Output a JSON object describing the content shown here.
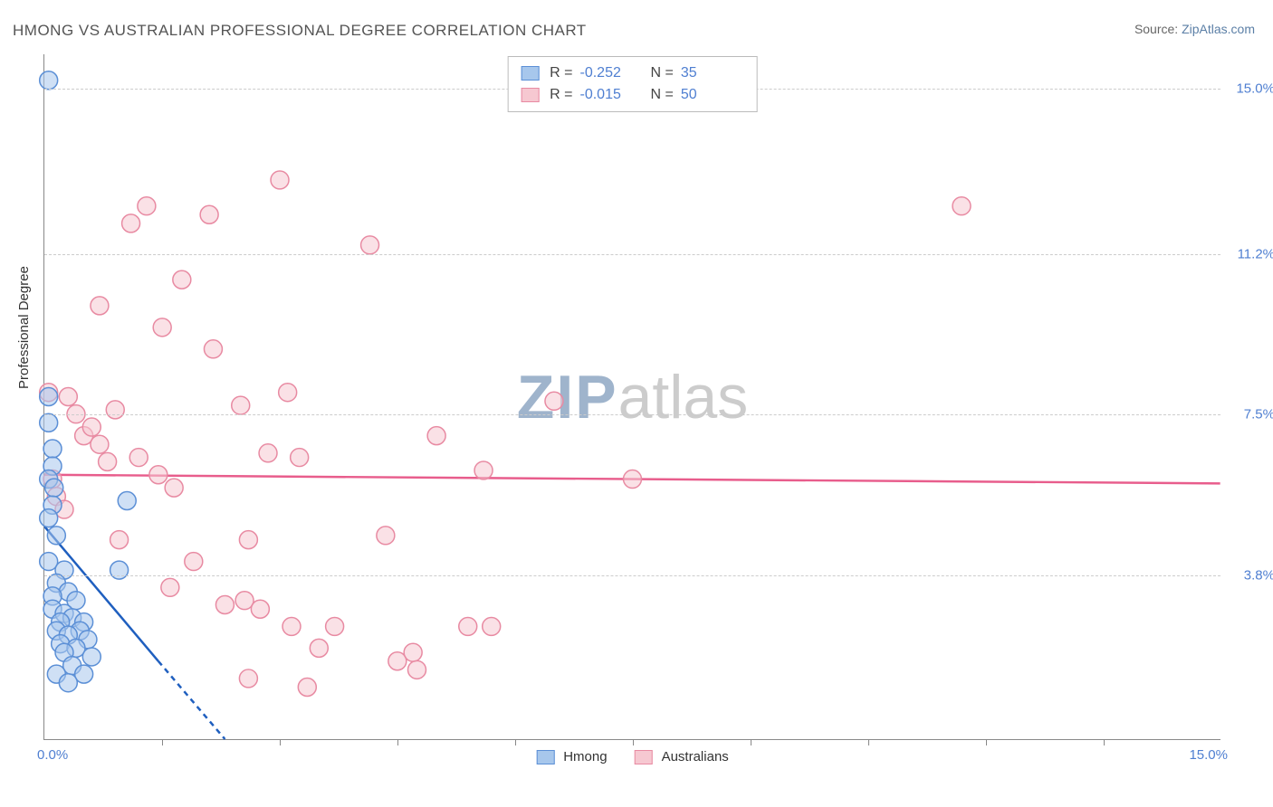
{
  "title": "HMONG VS AUSTRALIAN PROFESSIONAL DEGREE CORRELATION CHART",
  "source_prefix": "Source: ",
  "source_name": "ZipAtlas.com",
  "y_axis_label": "Professional Degree",
  "watermark": {
    "bold": "ZIP",
    "light": "atlas"
  },
  "colors": {
    "hmong_fill": "#a7c7ec",
    "hmong_stroke": "#5b8fd6",
    "hmong_line": "#1f5fbf",
    "aus_fill": "#f6c8d1",
    "aus_stroke": "#e88aa2",
    "aus_line": "#e85d8c",
    "axis_tick_label": "#4f7fd1",
    "grid": "#cccccc",
    "title": "#555555"
  },
  "chart": {
    "type": "scatter",
    "xlim": [
      0,
      15
    ],
    "ylim": [
      0,
      15.8
    ],
    "y_ticks": [
      3.8,
      7.5,
      11.2,
      15.0
    ],
    "y_tick_labels": [
      "3.8%",
      "7.5%",
      "11.2%",
      "15.0%"
    ],
    "x_ticks": [
      1.5,
      3,
      4.5,
      6,
      7.5,
      9,
      10.5,
      12,
      13.5
    ],
    "x_domain_labels": [
      "0.0%",
      "15.0%"
    ],
    "marker_radius": 10,
    "marker_opacity": 0.55,
    "legend_top": [
      {
        "series": "hmong",
        "r": "-0.252",
        "n": "35"
      },
      {
        "series": "aus",
        "r": "-0.015",
        "n": "50"
      }
    ],
    "legend_bottom": [
      {
        "series": "hmong",
        "label": "Hmong"
      },
      {
        "series": "aus",
        "label": "Australians"
      }
    ],
    "series": {
      "hmong": {
        "trend": {
          "x1": 0,
          "y1": 4.9,
          "x2": 1.45,
          "y2": 1.8
        },
        "trend_extend": {
          "x1": 1.45,
          "y1": 1.8,
          "x2": 2.3,
          "y2": 0
        },
        "points": [
          [
            0.05,
            15.2
          ],
          [
            0.05,
            7.9
          ],
          [
            0.05,
            7.3
          ],
          [
            0.1,
            6.7
          ],
          [
            0.1,
            6.3
          ],
          [
            0.05,
            6.0
          ],
          [
            0.12,
            5.8
          ],
          [
            0.1,
            5.4
          ],
          [
            0.05,
            5.1
          ],
          [
            0.15,
            4.7
          ],
          [
            0.05,
            4.1
          ],
          [
            0.25,
            3.9
          ],
          [
            0.15,
            3.6
          ],
          [
            0.3,
            3.4
          ],
          [
            0.1,
            3.3
          ],
          [
            0.4,
            3.2
          ],
          [
            0.1,
            3.0
          ],
          [
            0.25,
            2.9
          ],
          [
            0.35,
            2.8
          ],
          [
            0.2,
            2.7
          ],
          [
            0.5,
            2.7
          ],
          [
            0.45,
            2.5
          ],
          [
            0.15,
            2.5
          ],
          [
            0.3,
            2.4
          ],
          [
            0.55,
            2.3
          ],
          [
            0.2,
            2.2
          ],
          [
            0.4,
            2.1
          ],
          [
            0.25,
            2.0
          ],
          [
            0.6,
            1.9
          ],
          [
            0.35,
            1.7
          ],
          [
            0.15,
            1.5
          ],
          [
            0.5,
            1.5
          ],
          [
            0.3,
            1.3
          ],
          [
            0.95,
            3.9
          ],
          [
            1.05,
            5.5
          ]
        ]
      },
      "aus": {
        "trend": {
          "x1": 0,
          "y1": 6.1,
          "x2": 15,
          "y2": 5.9
        },
        "points": [
          [
            0.3,
            7.9
          ],
          [
            0.4,
            7.5
          ],
          [
            0.5,
            7.0
          ],
          [
            0.1,
            6.0
          ],
          [
            0.15,
            5.6
          ],
          [
            0.25,
            5.3
          ],
          [
            0.6,
            7.2
          ],
          [
            0.7,
            6.8
          ],
          [
            0.8,
            6.4
          ],
          [
            0.9,
            7.6
          ],
          [
            0.7,
            10.0
          ],
          [
            0.95,
            4.6
          ],
          [
            1.1,
            11.9
          ],
          [
            1.2,
            6.5
          ],
          [
            1.3,
            12.3
          ],
          [
            1.45,
            6.1
          ],
          [
            1.5,
            9.5
          ],
          [
            1.6,
            3.5
          ],
          [
            1.65,
            5.8
          ],
          [
            1.75,
            10.6
          ],
          [
            1.9,
            4.1
          ],
          [
            2.1,
            12.1
          ],
          [
            2.15,
            9.0
          ],
          [
            2.3,
            3.1
          ],
          [
            2.5,
            7.7
          ],
          [
            2.55,
            3.2
          ],
          [
            2.6,
            4.6
          ],
          [
            2.6,
            1.4
          ],
          [
            2.75,
            3.0
          ],
          [
            2.85,
            6.6
          ],
          [
            3.0,
            12.9
          ],
          [
            3.1,
            8.0
          ],
          [
            3.15,
            2.6
          ],
          [
            3.25,
            6.5
          ],
          [
            3.35,
            1.2
          ],
          [
            3.5,
            2.1
          ],
          [
            3.7,
            2.6
          ],
          [
            4.15,
            11.4
          ],
          [
            4.35,
            4.7
          ],
          [
            4.5,
            1.8
          ],
          [
            4.7,
            2.0
          ],
          [
            4.75,
            1.6
          ],
          [
            5.0,
            7.0
          ],
          [
            5.4,
            2.6
          ],
          [
            5.6,
            6.2
          ],
          [
            5.7,
            2.6
          ],
          [
            6.5,
            7.8
          ],
          [
            7.5,
            6.0
          ],
          [
            11.7,
            12.3
          ],
          [
            0.05,
            8.0
          ]
        ]
      }
    }
  }
}
